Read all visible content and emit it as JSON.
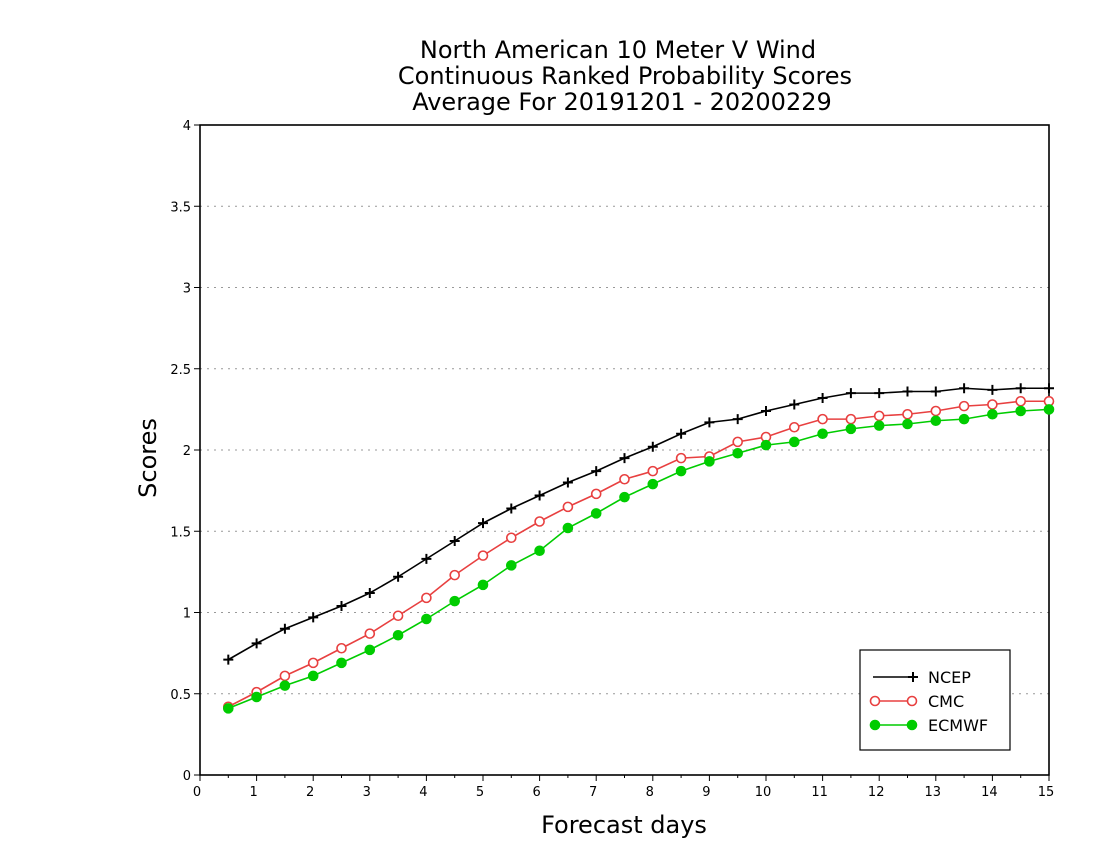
{
  "chart_data": {
    "type": "line",
    "title": [
      "North American 10 Meter V Wind",
      "Continuous Ranked Probability Scores",
      "Average For 20191201 - 20200229"
    ],
    "xlabel": "Forecast days",
    "ylabel": "Scores",
    "xlim": [
      0,
      15
    ],
    "ylim": [
      0,
      4
    ],
    "xticks": [
      "0",
      "1",
      "2",
      "3",
      "4",
      "5",
      "6",
      "7",
      "8",
      "9",
      "10",
      "11",
      "12",
      "13",
      "14",
      "15"
    ],
    "yticks": [
      "0",
      "0.5",
      "1",
      "1.5",
      "2",
      "2.5",
      "3",
      "3.5",
      "4"
    ],
    "grid": true,
    "legend_position": "bottom-right",
    "x": [
      0.5,
      1,
      1.5,
      2,
      2.5,
      3,
      3.5,
      4,
      4.5,
      5,
      5.5,
      6,
      6.5,
      7,
      7.5,
      8,
      8.5,
      9,
      9.5,
      10,
      10.5,
      11,
      11.5,
      12,
      12.5,
      13,
      13.5,
      14,
      14.5,
      15
    ],
    "series": [
      {
        "name": "NCEP",
        "color": "#000000",
        "marker": "plus",
        "values": [
          0.71,
          0.81,
          0.9,
          0.97,
          1.04,
          1.12,
          1.22,
          1.33,
          1.44,
          1.55,
          1.64,
          1.72,
          1.8,
          1.87,
          1.95,
          2.02,
          2.1,
          2.17,
          2.19,
          2.24,
          2.28,
          2.32,
          2.35,
          2.35,
          2.36,
          2.36,
          2.38,
          2.37,
          2.38,
          2.38
        ]
      },
      {
        "name": "CMC",
        "color": "#e84040",
        "marker": "open-circle",
        "values": [
          0.42,
          0.51,
          0.61,
          0.69,
          0.78,
          0.87,
          0.98,
          1.09,
          1.23,
          1.35,
          1.46,
          1.56,
          1.65,
          1.73,
          1.82,
          1.87,
          1.95,
          1.96,
          2.05,
          2.08,
          2.14,
          2.19,
          2.19,
          2.21,
          2.22,
          2.24,
          2.27,
          2.28,
          2.3,
          2.3
        ]
      },
      {
        "name": "ECMWF",
        "color": "#00cc00",
        "marker": "filled-circle",
        "values": [
          0.41,
          0.48,
          0.55,
          0.61,
          0.69,
          0.77,
          0.86,
          0.96,
          1.07,
          1.17,
          1.29,
          1.38,
          1.52,
          1.61,
          1.71,
          1.79,
          1.87,
          1.93,
          1.98,
          2.03,
          2.05,
          2.1,
          2.13,
          2.15,
          2.16,
          2.18,
          2.19,
          2.22,
          2.24,
          2.25
        ]
      }
    ]
  }
}
